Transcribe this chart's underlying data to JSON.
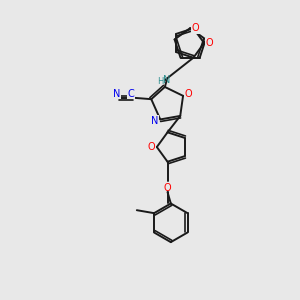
{
  "background_color": "#e8e8e8",
  "bond_color": "#1a1a1a",
  "nitrogen_color": "#0000ee",
  "oxygen_color": "#ff0000",
  "nh_color": "#2f8f8f",
  "cn_color": "#0000ee",
  "figsize": [
    3.0,
    3.0
  ],
  "dpi": 100,
  "xlim": [
    0,
    10
  ],
  "ylim": [
    0,
    10
  ]
}
